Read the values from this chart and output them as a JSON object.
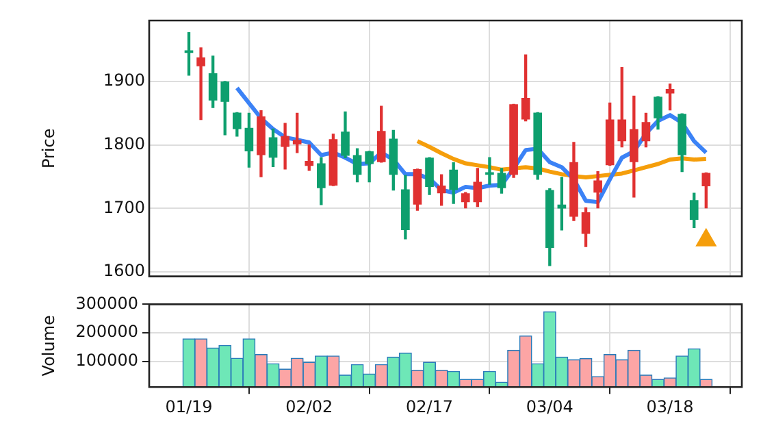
{
  "chart_data": [
    {
      "type": "candlestick",
      "ylabel": "Price",
      "ylim": [
        1593,
        1996
      ],
      "yticks": [
        1600,
        1700,
        1800,
        1900
      ],
      "grid": true,
      "tick_labels": "y",
      "categories": [
        null,
        null,
        null,
        null,
        null,
        null,
        null,
        null,
        null,
        null,
        null,
        null,
        null,
        null,
        null,
        null,
        null,
        null,
        null,
        null,
        null,
        null,
        null,
        null,
        null,
        null,
        null,
        null,
        null,
        null,
        null,
        null,
        null,
        null,
        null,
        null,
        null,
        null,
        null,
        null,
        null,
        null,
        null,
        null
      ],
      "ohlc": [
        [
          1945,
          1977,
          1910,
          1949
        ],
        [
          1938,
          1953,
          1840,
          1924
        ],
        [
          1870,
          1940,
          1859,
          1913
        ],
        [
          1868,
          1900,
          1816,
          1900
        ],
        [
          1825,
          1851,
          1814,
          1851
        ],
        [
          1790,
          1850,
          1765,
          1827
        ],
        [
          1845,
          1854,
          1750,
          1784
        ],
        [
          1780,
          1825,
          1766,
          1812
        ],
        [
          1814,
          1834,
          1762,
          1797
        ],
        [
          1808,
          1850,
          1788,
          1801
        ],
        [
          1775,
          1800,
          1760,
          1767
        ],
        [
          1732,
          1780,
          1706,
          1771
        ],
        [
          1809,
          1817,
          1736,
          1736
        ],
        [
          1783,
          1852,
          1780,
          1821
        ],
        [
          1753,
          1794,
          1742,
          1784
        ],
        [
          1770,
          1790,
          1742,
          1790
        ],
        [
          1822,
          1861,
          1773,
          1773
        ],
        [
          1753,
          1823,
          1729,
          1810
        ],
        [
          1666,
          1752,
          1652,
          1730
        ],
        [
          1762,
          1762,
          1697,
          1706
        ],
        [
          1734,
          1780,
          1722,
          1780
        ],
        [
          1736,
          1753,
          1705,
          1724
        ],
        [
          1729,
          1772,
          1708,
          1761
        ],
        [
          1724,
          1725,
          1701,
          1710
        ],
        [
          1742,
          1763,
          1703,
          1710
        ],
        [
          1753,
          1780,
          1738,
          1757
        ],
        [
          1732,
          1763,
          1724,
          1756
        ],
        [
          1864,
          1864,
          1749,
          1753
        ],
        [
          1874,
          1942,
          1838,
          1840
        ],
        [
          1753,
          1851,
          1746,
          1851
        ],
        [
          1638,
          1731,
          1610,
          1729
        ],
        [
          1700,
          1749,
          1666,
          1706
        ],
        [
          1773,
          1804,
          1681,
          1687
        ],
        [
          1694,
          1701,
          1640,
          1660
        ],
        [
          1744,
          1758,
          1701,
          1725
        ],
        [
          1840,
          1866,
          1768,
          1768
        ],
        [
          1840,
          1922,
          1797,
          1806
        ],
        [
          1825,
          1877,
          1718,
          1773
        ],
        [
          1836,
          1850,
          1797,
          1806
        ],
        [
          1842,
          1876,
          1825,
          1876
        ],
        [
          1888,
          1896,
          1855,
          1881
        ],
        [
          1784,
          1849,
          1758,
          1849
        ],
        [
          1682,
          1724,
          1670,
          1713
        ],
        [
          1756,
          1756,
          1701,
          1735
        ]
      ],
      "colors": [
        "#0e9f6e",
        "#e03131",
        "#0e9f6e",
        "#0e9f6e",
        "#0e9f6e",
        "#0e9f6e",
        "#e03131",
        "#0e9f6e",
        "#e03131",
        "#e03131",
        "#e03131",
        "#0e9f6e",
        "#e03131",
        "#0e9f6e",
        "#0e9f6e",
        "#0e9f6e",
        "#e03131",
        "#0e9f6e",
        "#0e9f6e",
        "#e03131",
        "#0e9f6e",
        "#e03131",
        "#0e9f6e",
        "#e03131",
        "#e03131",
        "#0e9f6e",
        "#0e9f6e",
        "#e03131",
        "#e03131",
        "#0e9f6e",
        "#0e9f6e",
        "#0e9f6e",
        "#e03131",
        "#e03131",
        "#e03131",
        "#e03131",
        "#e03131",
        "#e03131",
        "#e03131",
        "#0e9f6e",
        "#e03131",
        "#0e9f6e",
        "#0e9f6e",
        "#e03131"
      ],
      "series": [
        {
          "type": "line",
          "color": "#3b82f6",
          "values": [
            null,
            null,
            null,
            null,
            1890,
            1866,
            1842,
            1825,
            1812,
            1808,
            1804,
            1784,
            1788,
            1780,
            1770,
            1771,
            1788,
            1777,
            1754,
            1754,
            1747,
            1729,
            1725,
            1734,
            1732,
            1736,
            1737,
            1763,
            1792,
            1794,
            1773,
            1765,
            1746,
            1712,
            1710,
            1746,
            1780,
            1790,
            1818,
            1838,
            1847,
            1835,
            1806,
            1788
          ]
        },
        {
          "type": "line",
          "color": "#f59e0b",
          "values": [
            null,
            null,
            null,
            null,
            null,
            null,
            null,
            null,
            null,
            null,
            null,
            null,
            null,
            null,
            null,
            null,
            null,
            null,
            null,
            1806,
            1797,
            1787,
            1778,
            1771,
            1768,
            1765,
            1761,
            1763,
            1765,
            1763,
            1758,
            1754,
            1751,
            1749,
            1751,
            1753,
            1755,
            1760,
            1765,
            1770,
            1777,
            1779,
            1777,
            1778
          ]
        },
        {
          "type": "scatter",
          "color": "#f59e0b",
          "marker": "triangle",
          "values": [
            null,
            null,
            null,
            null,
            null,
            null,
            null,
            null,
            null,
            null,
            null,
            null,
            null,
            null,
            null,
            null,
            null,
            null,
            null,
            null,
            null,
            null,
            null,
            null,
            null,
            null,
            null,
            null,
            null,
            null,
            null,
            null,
            null,
            null,
            null,
            null,
            null,
            null,
            null,
            null,
            null,
            null,
            null,
            1650
          ]
        }
      ]
    },
    {
      "type": "bar",
      "ylabel": "Volume",
      "ylim": [
        10000,
        300000
      ],
      "yticks": [
        100000,
        200000,
        300000
      ],
      "grid": true,
      "categories": [
        "01/19",
        null,
        null,
        null,
        null,
        null,
        null,
        null,
        null,
        null,
        "02/02",
        null,
        null,
        null,
        null,
        null,
        null,
        null,
        null,
        null,
        "02/17",
        null,
        null,
        null,
        null,
        null,
        null,
        null,
        null,
        null,
        "03/04",
        null,
        null,
        null,
        null,
        null,
        null,
        null,
        null,
        null,
        "03/18",
        null,
        null,
        null
      ],
      "values": [
        179000,
        179000,
        147000,
        156000,
        111000,
        179000,
        124000,
        92000,
        73000,
        111000,
        97000,
        119000,
        119000,
        52000,
        89000,
        56000,
        89000,
        115000,
        129000,
        69000,
        97000,
        69000,
        65000,
        37000,
        37000,
        65000,
        27000,
        139000,
        189000,
        92000,
        274000,
        115000,
        106000,
        110000,
        47000,
        124000,
        106000,
        139000,
        52000,
        37000,
        42000,
        119000,
        144000,
        37000
      ],
      "colors": [
        "#6ee7b7",
        "#fca5a5",
        "#6ee7b7",
        "#6ee7b7",
        "#6ee7b7",
        "#6ee7b7",
        "#fca5a5",
        "#6ee7b7",
        "#fca5a5",
        "#fca5a5",
        "#fca5a5",
        "#6ee7b7",
        "#fca5a5",
        "#6ee7b7",
        "#6ee7b7",
        "#6ee7b7",
        "#fca5a5",
        "#6ee7b7",
        "#6ee7b7",
        "#fca5a5",
        "#6ee7b7",
        "#fca5a5",
        "#6ee7b7",
        "#fca5a5",
        "#fca5a5",
        "#6ee7b7",
        "#6ee7b7",
        "#fca5a5",
        "#fca5a5",
        "#6ee7b7",
        "#6ee7b7",
        "#6ee7b7",
        "#fca5a5",
        "#fca5a5",
        "#fca5a5",
        "#fca5a5",
        "#fca5a5",
        "#fca5a5",
        "#fca5a5",
        "#6ee7b7",
        "#fca5a5",
        "#6ee7b7",
        "#6ee7b7",
        "#fca5a5"
      ]
    }
  ]
}
